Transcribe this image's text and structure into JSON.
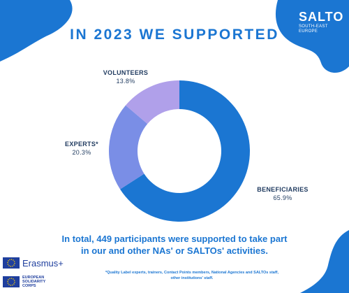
{
  "title": "IN 2023 WE SUPPORTED",
  "logo": {
    "name": "SALTO",
    "sub_line1": "SOUTH-EAST",
    "sub_line2": "EUROPE"
  },
  "colors": {
    "accent": "#1b76d2",
    "beneficiaries": "#1b76d2",
    "experts": "#7a8ee6",
    "volunteers": "#b0a0ea"
  },
  "chart_data": {
    "type": "pie",
    "donut": true,
    "title": "IN 2023 WE SUPPORTED",
    "slices": [
      {
        "label": "BENEFICIARIES",
        "value": 65.9,
        "value_label": "65.9%"
      },
      {
        "label": "EXPERTS*",
        "value": 20.3,
        "value_label": "20.3%"
      },
      {
        "label": "VOLUNTEERS",
        "value": 13.8,
        "value_label": "13.8%"
      }
    ]
  },
  "summary": {
    "line1": "In total, 449 participants were supported to take part",
    "line2": "in our and other NAs' or SALTOs' activities."
  },
  "footnote": {
    "line1": "*Quality Label experts, trainers, Contact Points members, National Agencies and SALTOs staff,",
    "line2": "other institutions' staff."
  },
  "partners": {
    "erasmus": "Erasmus+",
    "esc_line1": "EUROPEAN",
    "esc_line2": "SOLIDARITY",
    "esc_line3": "CORPS"
  }
}
